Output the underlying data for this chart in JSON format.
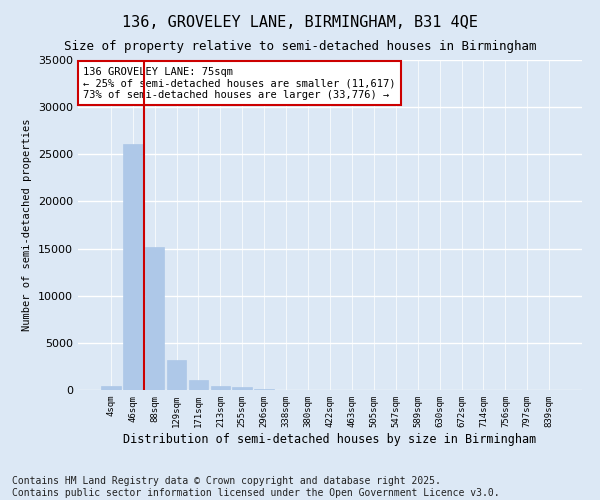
{
  "title": "136, GROVELEY LANE, BIRMINGHAM, B31 4QE",
  "subtitle": "Size of property relative to semi-detached houses in Birmingham",
  "xlabel": "Distribution of semi-detached houses by size in Birmingham",
  "ylabel": "Number of semi-detached properties",
  "categories": [
    "4sqm",
    "46sqm",
    "88sqm",
    "129sqm",
    "171sqm",
    "213sqm",
    "255sqm",
    "296sqm",
    "338sqm",
    "380sqm",
    "422sqm",
    "463sqm",
    "505sqm",
    "547sqm",
    "589sqm",
    "630sqm",
    "672sqm",
    "714sqm",
    "756sqm",
    "797sqm",
    "839sqm"
  ],
  "values": [
    400,
    26100,
    15200,
    3200,
    1100,
    450,
    300,
    100,
    0,
    0,
    0,
    0,
    0,
    0,
    0,
    0,
    0,
    0,
    0,
    0,
    0
  ],
  "bar_color": "#aec8e8",
  "bar_edgecolor": "#aec8e8",
  "property_line_x": 1.5,
  "property_line_color": "#cc0000",
  "annotation_text": "136 GROVELEY LANE: 75sqm\n← 25% of semi-detached houses are smaller (11,617)\n73% of semi-detached houses are larger (33,776) →",
  "annotation_box_color": "#ffffff",
  "annotation_box_edgecolor": "#cc0000",
  "ylim": [
    0,
    35000
  ],
  "yticks": [
    0,
    5000,
    10000,
    15000,
    20000,
    25000,
    30000,
    35000
  ],
  "background_color": "#dce8f5",
  "axes_background": "#dce8f5",
  "grid_color": "#ffffff",
  "footer_text": "Contains HM Land Registry data © Crown copyright and database right 2025.\nContains public sector information licensed under the Open Government Licence v3.0.",
  "title_fontsize": 11,
  "subtitle_fontsize": 9,
  "footer_fontsize": 7
}
